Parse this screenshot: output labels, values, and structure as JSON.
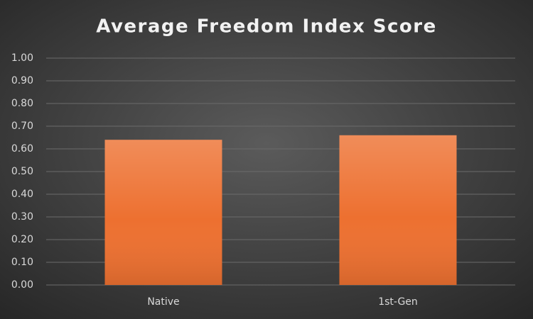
{
  "chart_data": {
    "type": "bar",
    "title": "Average Freedom Index Score",
    "categories": [
      "Native",
      "1st-Gen"
    ],
    "values": [
      0.64,
      0.66
    ],
    "color": "#ed7030",
    "ylim": [
      0,
      1
    ],
    "yticks": [
      {
        "value": 0,
        "label": "0.00"
      },
      {
        "value": 0.1,
        "label": "0.10"
      },
      {
        "value": 0.2,
        "label": "0.20"
      },
      {
        "value": 0.3,
        "label": "0.30"
      },
      {
        "value": 0.4,
        "label": "0.40"
      },
      {
        "value": 0.5,
        "label": "0.50"
      },
      {
        "value": 0.6,
        "label": "0.60"
      },
      {
        "value": 0.7,
        "label": "0.70"
      },
      {
        "value": 0.8,
        "label": "0.80"
      },
      {
        "value": 0.9,
        "label": "0.90"
      },
      {
        "value": 1,
        "label": "1.00"
      }
    ],
    "grid": true
  }
}
